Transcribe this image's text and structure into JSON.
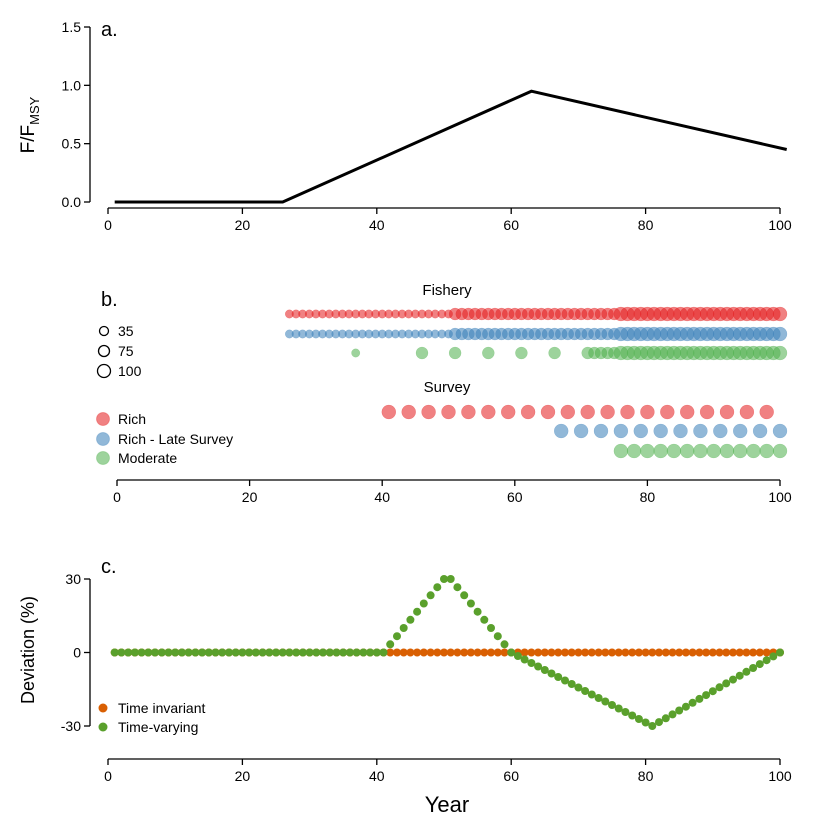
{
  "colors": {
    "rich": "#E41A1C",
    "rich_late": "#377EB8",
    "moderate": "#4DAF4A",
    "time_invariant": "#D95F02",
    "time_varying": "#5AA02C",
    "line": "#000000"
  },
  "chart_data": [
    {
      "type": "line",
      "panel_label": "a.",
      "ylabel": "F/F",
      "ylabel_sub": "MSY",
      "xlim": [
        0,
        100
      ],
      "ylim": [
        0,
        1.5
      ],
      "xticks": [
        0,
        20,
        40,
        60,
        80,
        100
      ],
      "yticks": [
        "0.0",
        "0.5",
        "1.0",
        "1.5"
      ],
      "x": [
        1,
        26,
        63,
        101
      ],
      "y": [
        0,
        0,
        0.95,
        0.45
      ]
    },
    {
      "type": "scatter",
      "panel_label": "b.",
      "xlim": [
        0,
        100
      ],
      "xticks": [
        0,
        20,
        40,
        60,
        80,
        100
      ],
      "fishery_label": "Fishery",
      "survey_label": "Survey",
      "size_legend": [
        "35",
        "75",
        "100"
      ],
      "legend": [
        "Rich",
        "Rich - Late Survey",
        "Moderate"
      ],
      "fishery": [
        {
          "scenario": "Rich",
          "color_key": "rich",
          "segments": [
            {
              "from": 26,
              "to": 50,
              "step": 1,
              "size": 35
            },
            {
              "from": 51,
              "to": 75,
              "step": 1,
              "size": 75
            },
            {
              "from": 76,
              "to": 100,
              "step": 1,
              "size": 100
            }
          ]
        },
        {
          "scenario": "Rich - Late Survey",
          "color_key": "rich_late",
          "segments": [
            {
              "from": 26,
              "to": 50,
              "step": 1,
              "size": 35
            },
            {
              "from": 51,
              "to": 75,
              "step": 1,
              "size": 75
            },
            {
              "from": 76,
              "to": 100,
              "step": 1,
              "size": 100
            }
          ]
        },
        {
          "scenario": "Moderate",
          "color_key": "moderate",
          "segments": [
            {
              "from": 36,
              "to": 36,
              "step": 1,
              "size": 35
            },
            {
              "from": 46,
              "to": 66,
              "step": 5,
              "size": 75
            },
            {
              "from": 71,
              "to": 75,
              "step": 1,
              "size": 75
            },
            {
              "from": 76,
              "to": 100,
              "step": 1,
              "size": 100
            }
          ]
        }
      ],
      "survey": [
        {
          "scenario": "Rich",
          "color_key": "rich",
          "from": 41,
          "to": 98,
          "step": 3,
          "size": 100
        },
        {
          "scenario": "Rich - Late Survey",
          "color_key": "rich_late",
          "from": 67,
          "to": 100,
          "step": 3,
          "size": 100
        },
        {
          "scenario": "Moderate",
          "color_key": "moderate",
          "from": 76,
          "to": 100,
          "step": 2,
          "size": 100
        }
      ]
    },
    {
      "type": "scatter",
      "panel_label": "c.",
      "xlabel": "Year",
      "ylabel": "Deviation (%)",
      "xlim": [
        0,
        100
      ],
      "ylim": [
        -30,
        30
      ],
      "xticks": [
        0,
        20,
        40,
        60,
        80,
        100
      ],
      "yticks": [
        "-30",
        "0",
        "30"
      ],
      "legend": [
        "Time invariant",
        "Time-varying"
      ],
      "series": [
        {
          "name": "Time invariant",
          "color_key": "time_invariant",
          "x_from": 1,
          "x_to": 100,
          "breakpoints": [
            [
              1,
              0
            ],
            [
              100,
              0
            ]
          ]
        },
        {
          "name": "Time-varying",
          "color_key": "time_varying",
          "x_from": 1,
          "x_to": 100,
          "breakpoints": [
            [
              1,
              0
            ],
            [
              41,
              0
            ],
            [
              50,
              30
            ],
            [
              51,
              30
            ],
            [
              60,
              0
            ],
            [
              81,
              -30
            ],
            [
              100,
              0
            ]
          ]
        }
      ]
    }
  ]
}
